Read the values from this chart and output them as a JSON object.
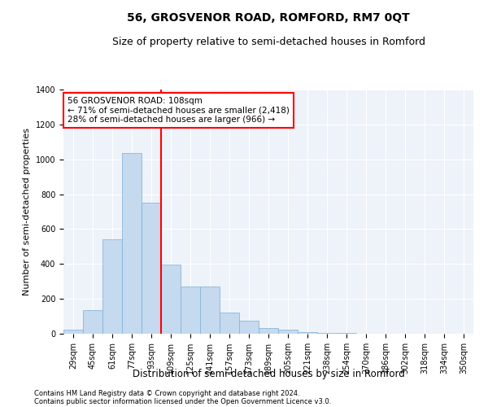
{
  "title": "56, GROSVENOR ROAD, ROMFORD, RM7 0QT",
  "subtitle": "Size of property relative to semi-detached houses in Romford",
  "xlabel": "Distribution of semi-detached houses by size in Romford",
  "ylabel": "Number of semi-detached properties",
  "categories": [
    "29sqm",
    "45sqm",
    "61sqm",
    "77sqm",
    "93sqm",
    "109sqm",
    "125sqm",
    "141sqm",
    "157sqm",
    "173sqm",
    "189sqm",
    "205sqm",
    "221sqm",
    "238sqm",
    "254sqm",
    "270sqm",
    "286sqm",
    "302sqm",
    "318sqm",
    "334sqm",
    "350sqm"
  ],
  "values": [
    25,
    135,
    540,
    1035,
    750,
    395,
    270,
    270,
    120,
    75,
    35,
    25,
    10,
    5,
    3,
    2,
    1,
    1,
    0,
    0,
    0
  ],
  "bar_color": "#c5d9ef",
  "bar_edge_color": "#7bafd4",
  "vline_color": "red",
  "annotation_line1": "56 GROSVENOR ROAD: 108sqm",
  "annotation_line2": "← 71% of semi-detached houses are smaller (2,418)",
  "annotation_line3": "28% of semi-detached houses are larger (966) →",
  "ylim": [
    0,
    1400
  ],
  "yticks": [
    0,
    200,
    400,
    600,
    800,
    1000,
    1200,
    1400
  ],
  "bg_color": "#eef2f9",
  "grid_color": "white",
  "footer_line1": "Contains HM Land Registry data © Crown copyright and database right 2024.",
  "footer_line2": "Contains public sector information licensed under the Open Government Licence v3.0.",
  "title_fontsize": 10,
  "subtitle_fontsize": 9,
  "xlabel_fontsize": 8.5,
  "ylabel_fontsize": 8,
  "tick_fontsize": 7,
  "annotation_fontsize": 7.5,
  "footer_fontsize": 6
}
